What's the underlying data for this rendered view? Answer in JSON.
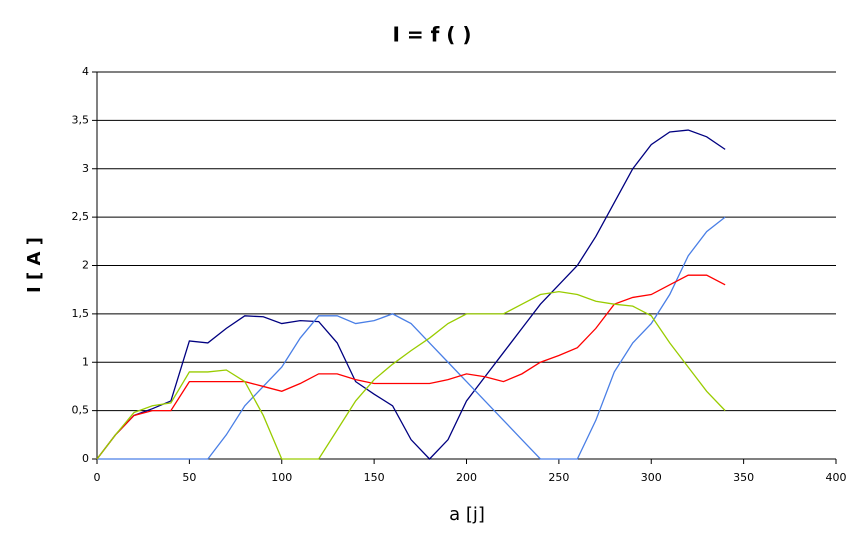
{
  "chart_data": {
    "type": "line",
    "title": "I = f (   )",
    "x_label": "a [j]",
    "y_label": "I [ A ]",
    "x": [
      0,
      10,
      20,
      30,
      40,
      50,
      60,
      70,
      80,
      90,
      100,
      110,
      120,
      130,
      140,
      150,
      160,
      170,
      180,
      190,
      200,
      210,
      220,
      230,
      240,
      250,
      260,
      270,
      280,
      290,
      300,
      310,
      320,
      330,
      340
    ],
    "series": [
      {
        "color": "#000080",
        "values": [
          0,
          0.25,
          0.45,
          0.52,
          0.6,
          1.22,
          1.2,
          1.35,
          1.48,
          1.47,
          1.4,
          1.43,
          1.42,
          1.2,
          0.8,
          0.67,
          0.55,
          0.2,
          0,
          0.2,
          0.6,
          0.85,
          1.1,
          1.35,
          1.6,
          1.8,
          2.0,
          2.3,
          2.65,
          3.0,
          3.25,
          3.38,
          3.4,
          3.33,
          3.2
        ]
      },
      {
        "color": "#4a7fe6",
        "values": [
          0,
          0,
          0,
          0,
          0,
          0,
          0,
          0.25,
          0.55,
          0.75,
          0.95,
          1.25,
          1.48,
          1.48,
          1.4,
          1.43,
          1.5,
          1.4,
          1.2,
          1.0,
          0.8,
          0.6,
          0.4,
          0.2,
          0,
          0,
          0,
          0.4,
          0.9,
          1.2,
          1.4,
          1.7,
          2.1,
          2.35,
          2.5
        ]
      },
      {
        "color": "#ff0000",
        "values": [
          0,
          0.25,
          0.45,
          0.5,
          0.5,
          0.8,
          0.8,
          0.8,
          0.8,
          0.75,
          0.7,
          0.78,
          0.88,
          0.88,
          0.82,
          0.78,
          0.78,
          0.78,
          0.78,
          0.82,
          0.88,
          0.85,
          0.8,
          0.88,
          1.0,
          1.07,
          1.15,
          1.35,
          1.6,
          1.67,
          1.7,
          1.8,
          1.9,
          1.9,
          1.8
        ]
      },
      {
        "color": "#99cc00",
        "values": [
          0,
          0.25,
          0.48,
          0.55,
          0.58,
          0.9,
          0.9,
          0.92,
          0.8,
          0.45,
          0,
          0,
          0,
          0.3,
          0.6,
          0.82,
          0.98,
          1.12,
          1.25,
          1.4,
          1.5,
          1.5,
          1.5,
          1.6,
          1.7,
          1.73,
          1.7,
          1.63,
          1.6,
          1.58,
          1.48,
          1.2,
          0.95,
          0.7,
          0.5
        ]
      }
    ],
    "xlim": [
      0,
      400
    ],
    "xticks": [
      0,
      50,
      100,
      150,
      200,
      250,
      300,
      350,
      400
    ],
    "ylim": [
      0,
      4
    ],
    "yticks": [
      0,
      {
        "value": 0.5,
        "label": "0,5"
      },
      1,
      {
        "value": 1.5,
        "label": "1,5"
      },
      2,
      {
        "value": 2.5,
        "label": "2,5"
      },
      3,
      {
        "value": 3.5,
        "label": "3,5"
      },
      4
    ],
    "grid": true
  }
}
